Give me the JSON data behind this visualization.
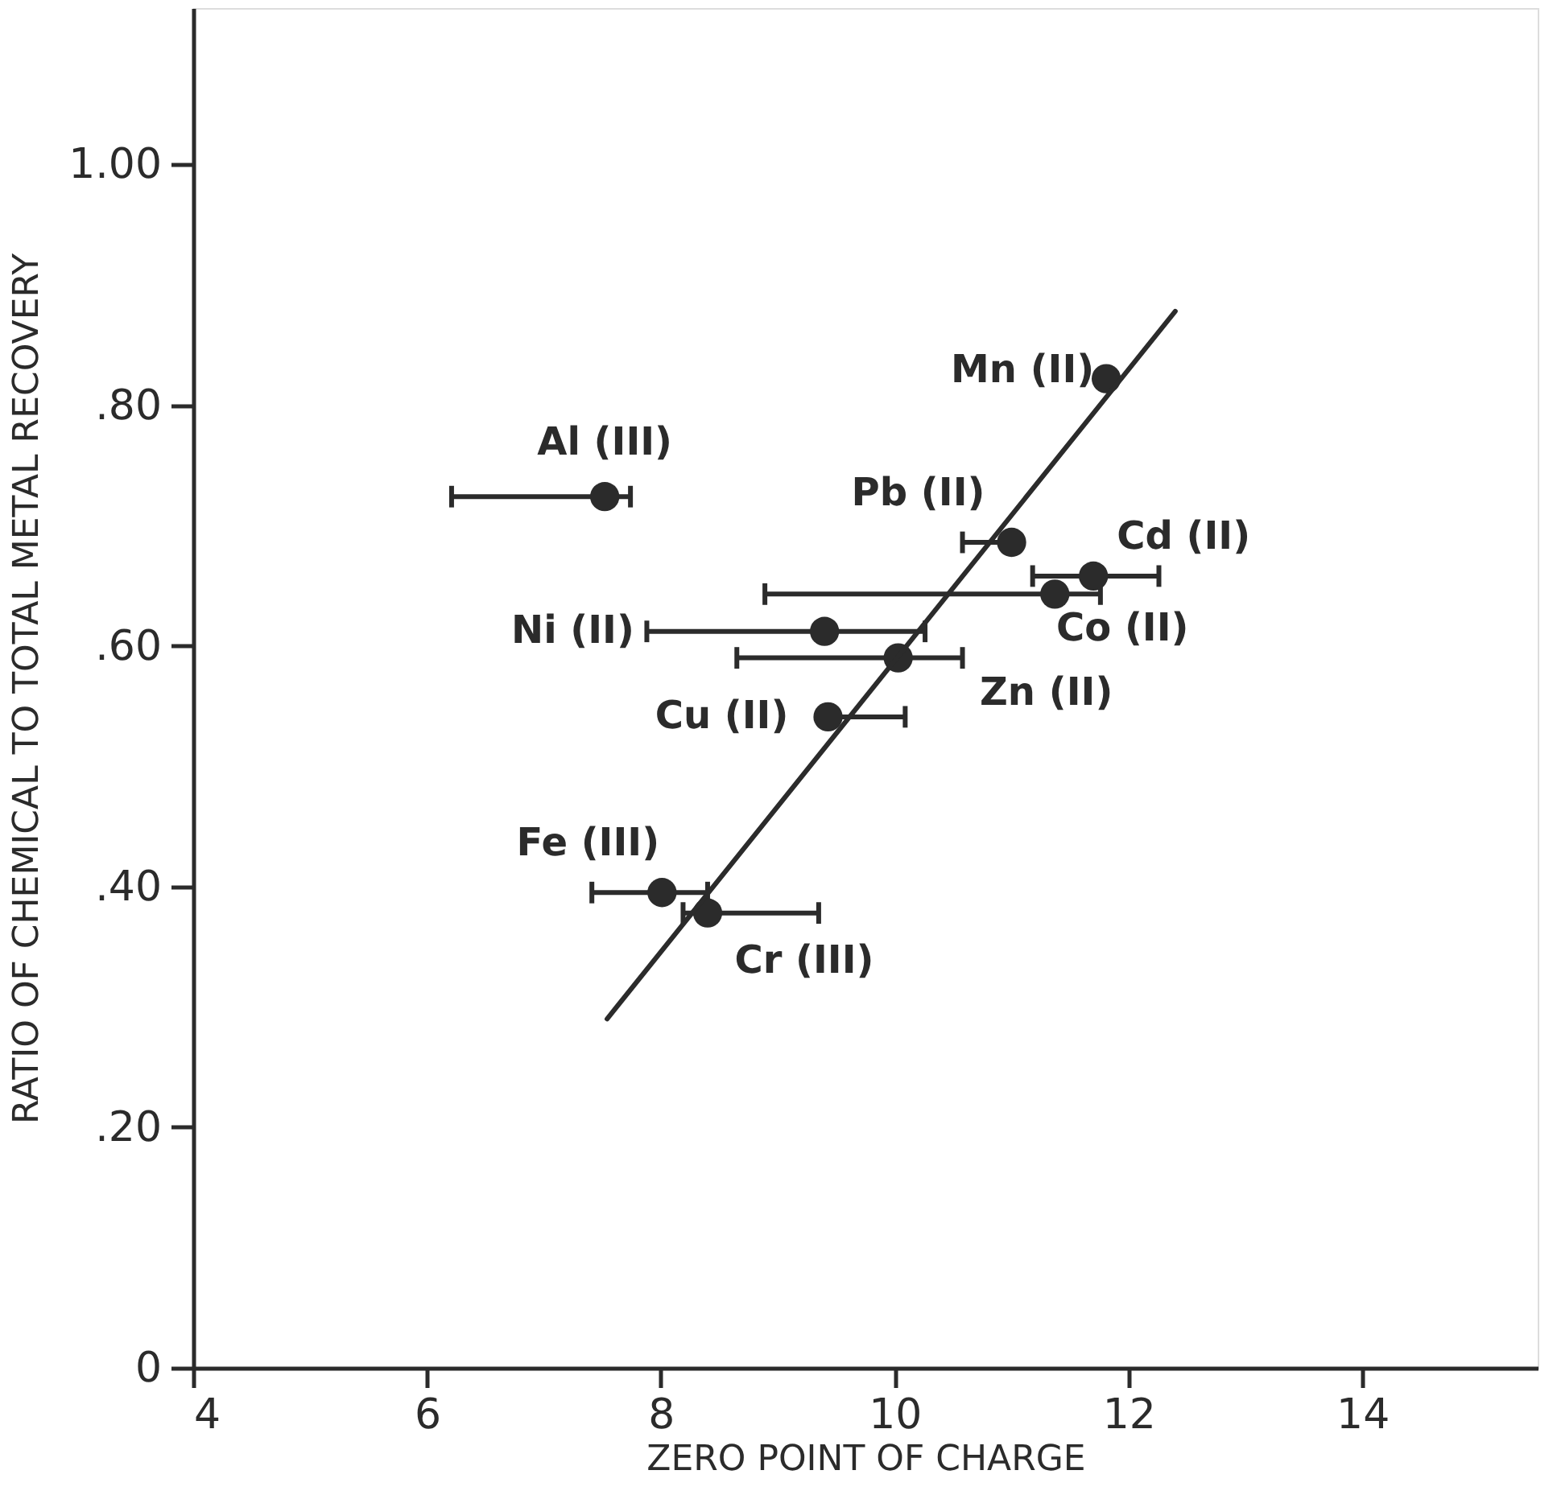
{
  "chart_data": {
    "type": "scatter",
    "xlabel": "ZERO POINT OF CHARGE",
    "ylabel": "RATIO OF CHEMICAL TO TOTAL METAL RECOVERY",
    "xlim": [
      4,
      15.5
    ],
    "ylim": [
      0,
      1.13
    ],
    "xticks": [
      4,
      6,
      8,
      10,
      12,
      14
    ],
    "yticks": [
      0,
      {
        "value": 0.2,
        "label": ".20"
      },
      {
        "value": 0.4,
        "label": ".40"
      },
      {
        "value": 0.6,
        "label": ".60"
      },
      {
        "value": 0.8,
        "label": ".80"
      },
      {
        "value": 1.0,
        "label": "1.00"
      }
    ],
    "grid": false,
    "marker": "circle",
    "series": [
      {
        "color": "#2b2b2b",
        "x": [
          7.52,
          11.81,
          11.0,
          11.7,
          11.37,
          9.4,
          10.03,
          9.43,
          8.01,
          8.4
        ],
        "values": [
          0.724,
          0.822,
          0.686,
          0.658,
          0.643,
          0.612,
          0.59,
          0.541,
          0.395,
          0.378
        ],
        "xerrors": [
          [
            6.21,
            7.74
          ],
          null,
          [
            10.58,
            11.0
          ],
          [
            11.18,
            12.26
          ],
          [
            8.89,
            11.76
          ],
          [
            7.88,
            10.26
          ],
          [
            8.65,
            10.58
          ],
          [
            9.43,
            10.09
          ],
          [
            7.41,
            8.4
          ],
          [
            8.19,
            9.35
          ]
        ]
      },
      {
        "type": "line",
        "color": "#2b2b2b",
        "line_style": "solid",
        "marker": "none",
        "x": [
          7.54,
          12.4
        ],
        "values": [
          0.29,
          0.878
        ]
      }
    ],
    "annotations": [
      {
        "text": "Al (III)",
        "x": 7.52,
        "y": 0.724
      },
      {
        "text": "Mn (II)",
        "x": 11.81,
        "y": 0.822
      },
      {
        "text": "Pb (II)",
        "x": 11.0,
        "y": 0.686
      },
      {
        "text": "Cd (II)",
        "x": 11.7,
        "y": 0.658
      },
      {
        "text": "Co (II)",
        "x": 11.37,
        "y": 0.643
      },
      {
        "text": "Ni (II)",
        "x": 7.88,
        "y": 0.612
      },
      {
        "text": "Zn (II)",
        "x": 10.03,
        "y": 0.59
      },
      {
        "text": "Cu (II)",
        "x": 9.43,
        "y": 0.541
      },
      {
        "text": "Fe (III)",
        "x": 8.01,
        "y": 0.395
      },
      {
        "text": "Cr (III)",
        "x": 8.4,
        "y": 0.378
      }
    ]
  }
}
